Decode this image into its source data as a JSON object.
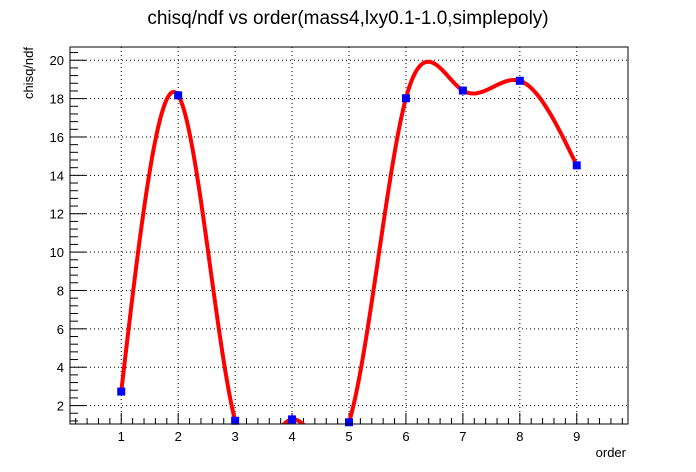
{
  "chart_data": {
    "type": "line",
    "title": "chisq/ndf vs order(mass4,lxy0.1-1.0,simplepoly)",
    "xlabel": "order",
    "ylabel": "chisq/ndf",
    "xlim": [
      0.1,
      9.9
    ],
    "ylim": [
      1.04,
      20.69
    ],
    "x_ticks": [
      1,
      2,
      3,
      4,
      5,
      6,
      7,
      8,
      9
    ],
    "y_ticks": [
      2,
      4,
      6,
      8,
      10,
      12,
      14,
      16,
      18,
      20
    ],
    "grid": true,
    "series": [
      {
        "x": [
          1,
          2,
          3,
          4,
          5,
          6,
          7,
          8,
          9
        ],
        "y": [
          2.73,
          18.17,
          1.21,
          1.28,
          1.13,
          18.02,
          18.42,
          18.93,
          14.52
        ]
      }
    ],
    "colors": {
      "curve": "#ff0000",
      "marker": "#0000ff",
      "frame": "#000000",
      "grid": "#000000"
    }
  }
}
